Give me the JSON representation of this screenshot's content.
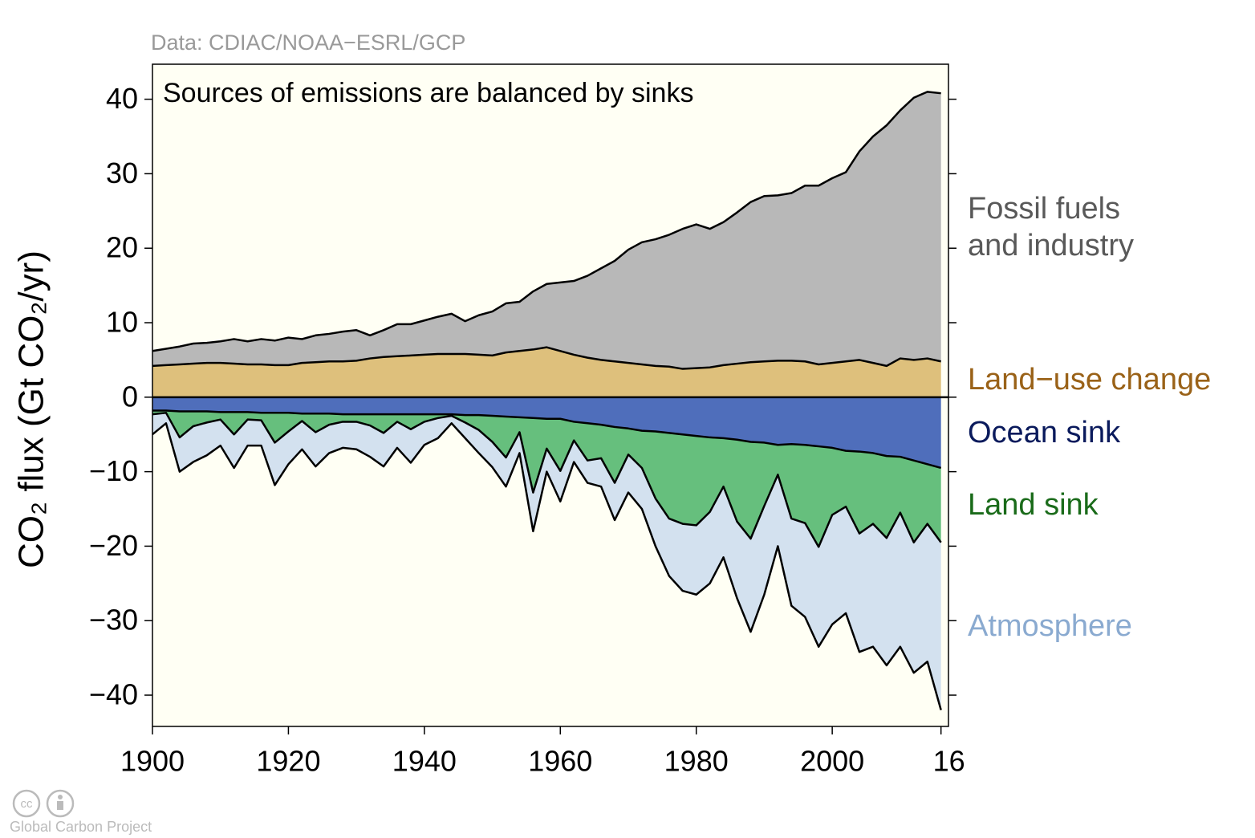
{
  "chart_data": {
    "type": "stacked_area",
    "source": "Data: CDIAC/NOAA−ESRL/GCP",
    "title": "Sources of emissions are balanced by sinks",
    "y_label": "CO₂ flux (Gt CO₂/yr)",
    "credit": "Global Carbon Project",
    "xlim": [
      1900,
      2017.1
    ],
    "ylim": [
      -44.2,
      44.7
    ],
    "xticks": [
      1900,
      1920,
      1940,
      1960,
      1980,
      2000,
      {
        "value": 2016,
        "label": "16"
      }
    ],
    "yticks": [
      {
        "value": -40,
        "label": "−40"
      },
      {
        "value": -30,
        "label": "−30"
      },
      {
        "value": -20,
        "label": "−20"
      },
      {
        "value": -10,
        "label": "−10"
      },
      0,
      10,
      20,
      30,
      40
    ],
    "x": [
      1900,
      1902,
      1904,
      1906,
      1908,
      1910,
      1912,
      1914,
      1916,
      1918,
      1920,
      1922,
      1924,
      1926,
      1928,
      1930,
      1932,
      1934,
      1936,
      1938,
      1940,
      1942,
      1944,
      1946,
      1948,
      1950,
      1952,
      1954,
      1956,
      1958,
      1960,
      1962,
      1964,
      1966,
      1968,
      1970,
      1972,
      1974,
      1976,
      1978,
      1980,
      1982,
      1984,
      1986,
      1988,
      1990,
      1992,
      1994,
      1996,
      1998,
      2000,
      2002,
      2004,
      2006,
      2008,
      2010,
      2012,
      2014,
      2016
    ],
    "series": [
      {
        "name": "Land−use change",
        "color": "#dec07c",
        "label_color": "#9a6218",
        "values": [
          4.2,
          4.3,
          4.4,
          4.5,
          4.6,
          4.6,
          4.5,
          4.4,
          4.4,
          4.3,
          4.3,
          4.6,
          4.7,
          4.8,
          4.8,
          4.9,
          5.2,
          5.4,
          5.5,
          5.6,
          5.7,
          5.8,
          5.8,
          5.8,
          5.7,
          5.6,
          6.0,
          6.2,
          6.4,
          6.7,
          6.2,
          5.7,
          5.3,
          5.0,
          4.8,
          4.6,
          4.4,
          4.2,
          4.1,
          3.8,
          3.9,
          4.0,
          4.3,
          4.5,
          4.7,
          4.8,
          4.9,
          4.9,
          4.8,
          4.4,
          4.6,
          4.8,
          5.0,
          4.6,
          4.2,
          5.2,
          5.0,
          5.2,
          4.8
        ]
      },
      {
        "name": "Fossil fuels and industry",
        "color": "#b8b8b8",
        "label_color": "#595959",
        "values": [
          2.0,
          2.2,
          2.4,
          2.7,
          2.7,
          2.9,
          3.3,
          3.1,
          3.4,
          3.3,
          3.7,
          3.2,
          3.6,
          3.7,
          4.0,
          4.1,
          3.1,
          3.6,
          4.3,
          4.2,
          4.6,
          5.0,
          5.4,
          4.4,
          5.3,
          5.9,
          6.6,
          6.6,
          7.8,
          8.5,
          9.2,
          9.9,
          11.0,
          12.3,
          13.5,
          15.2,
          16.4,
          17.0,
          17.7,
          18.8,
          19.3,
          18.6,
          19.2,
          20.3,
          21.5,
          22.2,
          22.2,
          22.5,
          23.6,
          24.0,
          24.8,
          25.4,
          28.0,
          30.4,
          32.3,
          33.3,
          35.2,
          35.8,
          36.0
        ]
      },
      {
        "name": "Ocean sink",
        "color": "#4f6ebb",
        "label_color": "#0a1a5c",
        "values": [
          -1.8,
          -1.8,
          -1.9,
          -1.9,
          -1.9,
          -2.0,
          -2.0,
          -2.0,
          -2.1,
          -2.1,
          -2.1,
          -2.2,
          -2.2,
          -2.2,
          -2.3,
          -2.3,
          -2.3,
          -2.3,
          -2.3,
          -2.3,
          -2.3,
          -2.3,
          -2.3,
          -2.4,
          -2.4,
          -2.5,
          -2.6,
          -2.7,
          -2.8,
          -2.9,
          -2.9,
          -3.3,
          -3.5,
          -3.7,
          -4.0,
          -4.2,
          -4.5,
          -4.6,
          -4.8,
          -5.0,
          -5.2,
          -5.4,
          -5.5,
          -5.7,
          -6.0,
          -6.1,
          -6.4,
          -6.3,
          -6.4,
          -6.6,
          -6.8,
          -7.2,
          -7.3,
          -7.5,
          -7.9,
          -8.0,
          -8.5,
          -9.0,
          -9.5
        ]
      },
      {
        "name": "Land sink",
        "color": "#66bf7d",
        "label_color": "#1a6b1a",
        "values": [
          -0.5,
          -0.3,
          -3.5,
          -2,
          -1.5,
          -1,
          -3,
          -1,
          -1,
          -4,
          -2.5,
          -1,
          -2.5,
          -1.5,
          -1,
          -1,
          -1.5,
          -2.5,
          -1,
          -2,
          -1,
          -0.5,
          -0.2,
          -1,
          -2,
          -3.5,
          -5.5,
          -2,
          -10,
          -4,
          -7,
          -2.5,
          -5,
          -4.5,
          -7.5,
          -3.5,
          -5,
          -9,
          -11.5,
          -12,
          -12,
          -10,
          -6.5,
          -11,
          -13,
          -8.5,
          -4,
          -10,
          -10.5,
          -13.5,
          -9,
          -7.5,
          -11,
          -9.5,
          -11,
          -7.5,
          -11,
          -8,
          -10
        ]
      },
      {
        "name": "Atmosphere",
        "color": "#d3e1ef",
        "label_color": "#8aaad0",
        "values": [
          -2.7,
          -1.4,
          -4.6,
          -4.8,
          -4.4,
          -3.5,
          -4.5,
          -3.5,
          -3.4,
          -5.7,
          -4.4,
          -3.8,
          -4.6,
          -3.8,
          -3.5,
          -3.7,
          -4.2,
          -4.5,
          -3.5,
          -4.5,
          -3.1,
          -2.7,
          -1.0,
          -2.1,
          -3.1,
          -3.4,
          -3.9,
          -2.8,
          -5.2,
          -3.1,
          -4.1,
          -2.9,
          -3.0,
          -3.8,
          -5.0,
          -5.1,
          -5.5,
          -6.4,
          -7.7,
          -9.0,
          -9.3,
          -9.6,
          -9.5,
          -10.3,
          -12.5,
          -11.9,
          -9.6,
          -11.7,
          -12.6,
          -13.4,
          -14.7,
          -14.3,
          -15.9,
          -16.5,
          -17.1,
          -18.0,
          -17.5,
          -18.5,
          -22.5
        ]
      }
    ]
  }
}
